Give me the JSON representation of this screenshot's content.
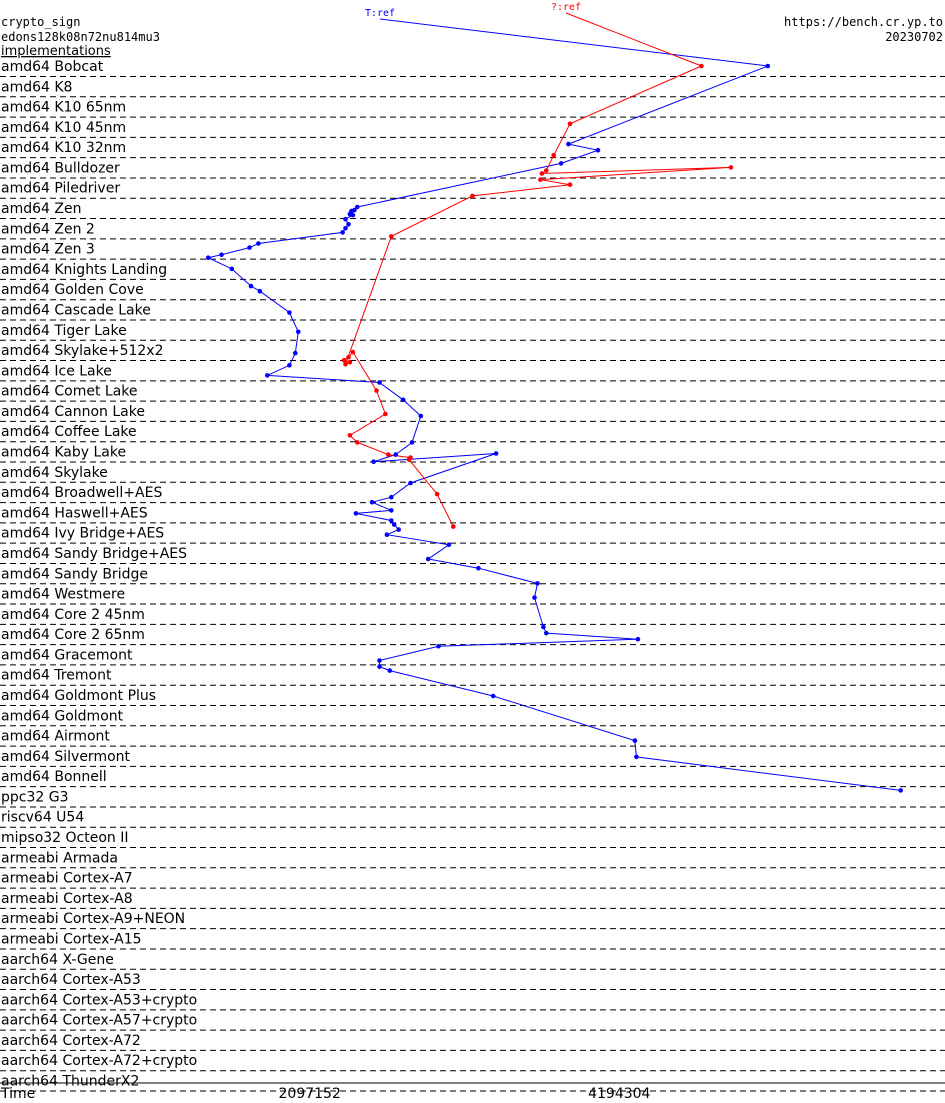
{
  "header": {
    "primitive": "crypto_sign",
    "implementation_name": "edons128k08n72nu814mu3",
    "implementations_link": "implementations",
    "site": "https://bench.cr.yp.to",
    "version": "20230702"
  },
  "chart_data": {
    "type": "line",
    "x_axis": {
      "label": "Time",
      "ticks": [
        2097152,
        4194304
      ],
      "tick_labels": [
        "2097152",
        "4194304"
      ],
      "range": [
        0,
        6400000
      ]
    },
    "series": [
      {
        "name": "T:ref",
        "color": "#0000ff"
      },
      {
        "name": "?:ref",
        "color": "#ff0000"
      }
    ],
    "microarchitectures": [
      "amd64 Bobcat",
      "amd64 K8",
      "amd64 K10 65nm",
      "amd64 K10 45nm",
      "amd64 K10 32nm",
      "amd64 Bulldozer",
      "amd64 Piledriver",
      "amd64 Zen",
      "amd64 Zen 2",
      "amd64 Zen 3",
      "amd64 Knights Landing",
      "amd64 Golden Cove",
      "amd64 Cascade Lake",
      "amd64 Tiger Lake",
      "amd64 Skylake+512x2",
      "amd64 Ice Lake",
      "amd64 Comet Lake",
      "amd64 Cannon Lake",
      "amd64 Coffee Lake",
      "amd64 Kaby Lake",
      "amd64 Skylake",
      "amd64 Broadwell+AES",
      "amd64 Haswell+AES",
      "amd64 Ivy Bridge+AES",
      "amd64 Sandy Bridge+AES",
      "amd64 Sandy Bridge",
      "amd64 Westmere",
      "amd64 Core 2 45nm",
      "amd64 Core 2 65nm",
      "amd64 Gracemont",
      "amd64 Tremont",
      "amd64 Goldmont Plus",
      "amd64 Goldmont",
      "amd64 Airmont",
      "amd64 Silvermont",
      "amd64 Bonnell",
      "ppc32 G3",
      "riscv64 U54",
      "mipso32 Octeon II",
      "armeabi Armada",
      "armeabi Cortex-A7",
      "armeabi Cortex-A8",
      "armeabi Cortex-A9+NEON",
      "armeabi Cortex-A15",
      "aarch64 X-Gene",
      "aarch64 Cortex-A53",
      "aarch64 Cortex-A53+crypto",
      "aarch64 Cortex-A57+crypto",
      "aarch64 Cortex-A72",
      "aarch64 Cortex-A72+crypto",
      "aarch64 ThunderX2"
    ],
    "blue_points": [
      [
        5200000,
        0.0
      ],
      [
        3850000,
        3.85
      ],
      [
        4050000,
        4.15
      ],
      [
        3800000,
        4.8
      ],
      [
        2420000,
        6.95
      ],
      [
        2400000,
        7.1
      ],
      [
        2380000,
        7.15
      ],
      [
        2370000,
        7.3
      ],
      [
        2390000,
        7.35
      ],
      [
        2340000,
        7.55
      ],
      [
        2360000,
        7.8
      ],
      [
        2340000,
        8.0
      ],
      [
        2320000,
        8.2
      ],
      [
        1750000,
        8.75
      ],
      [
        1690000,
        8.95
      ],
      [
        1500000,
        9.3
      ],
      [
        1410000,
        9.45
      ],
      [
        1570000,
        10.0
      ],
      [
        1700000,
        10.85
      ],
      [
        1760000,
        11.1
      ],
      [
        1960000,
        12.15
      ],
      [
        2020000,
        13.1
      ],
      [
        2000000,
        14.15
      ],
      [
        1960000,
        14.75
      ],
      [
        1810000,
        15.25
      ],
      [
        2570000,
        15.6
      ],
      [
        2730000,
        16.45
      ],
      [
        2850000,
        17.25
      ],
      [
        2790000,
        18.55
      ],
      [
        2680000,
        19.15
      ],
      [
        2530000,
        19.5
      ],
      [
        3360000,
        19.1
      ],
      [
        2780000,
        20.55
      ],
      [
        2650000,
        21.25
      ],
      [
        2520000,
        21.5
      ],
      [
        2650000,
        21.9
      ],
      [
        2410000,
        22.05
      ],
      [
        2650000,
        22.4
      ],
      [
        2670000,
        22.6
      ],
      [
        2700000,
        22.85
      ],
      [
        2620000,
        23.1
      ],
      [
        3040000,
        23.6
      ],
      [
        2900000,
        24.3
      ],
      [
        3240000,
        24.75
      ],
      [
        3640000,
        25.5
      ],
      [
        3620000,
        26.2
      ],
      [
        3680000,
        27.65
      ],
      [
        3700000,
        27.95
      ],
      [
        4320000,
        28.25
      ],
      [
        2970000,
        28.6
      ],
      [
        2570000,
        29.3
      ],
      [
        2570000,
        29.6
      ],
      [
        2640000,
        29.8
      ],
      [
        3340000,
        31.05
      ],
      [
        4300000,
        33.25
      ],
      [
        4310000,
        34.05
      ],
      [
        6100000,
        35.7
      ]
    ],
    "red_points": [
      [
        4750000,
        0.0
      ],
      [
        3860000,
        2.85
      ],
      [
        3750000,
        4.4
      ],
      [
        3700000,
        5.15
      ],
      [
        3670000,
        5.3
      ],
      [
        4950000,
        5.0
      ],
      [
        3660000,
        5.6
      ],
      [
        3860000,
        5.85
      ],
      [
        3200000,
        6.4
      ],
      [
        2650000,
        8.4
      ],
      [
        2340000,
        14.7
      ],
      [
        2370000,
        14.6
      ],
      [
        2330000,
        14.5
      ],
      [
        2360000,
        14.35
      ],
      [
        2390000,
        14.1
      ],
      [
        2550000,
        16.0
      ],
      [
        2610000,
        17.15
      ],
      [
        2370000,
        18.2
      ],
      [
        2420000,
        18.55
      ],
      [
        2630000,
        19.15
      ],
      [
        2780000,
        19.3
      ],
      [
        2770000,
        19.4
      ],
      [
        2960000,
        21.1
      ],
      [
        3070000,
        22.7
      ]
    ]
  }
}
